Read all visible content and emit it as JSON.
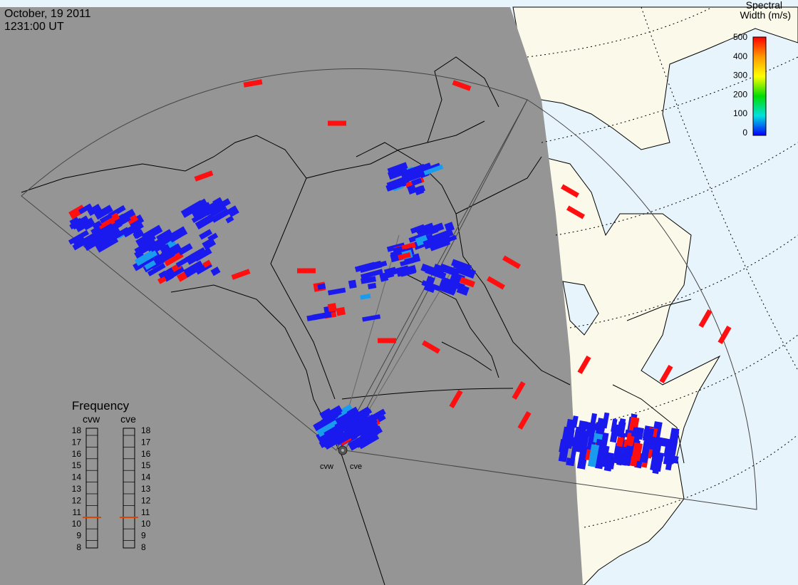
{
  "header": {
    "date": "October, 19 2011",
    "time": "1231:00 UT"
  },
  "colorbar": {
    "title_line1": "Spectral",
    "title_line2": "Width (m/s)",
    "ticks": [
      "500",
      "400",
      "300",
      "200",
      "100",
      "0"
    ],
    "stops": [
      "#ff0000",
      "#ff9900",
      "#ffff00",
      "#00dd00",
      "#00e0e0",
      "#0000ff"
    ]
  },
  "frequency_panel": {
    "title": "Frequency",
    "radars": [
      {
        "label": "cvw",
        "value_mhz": 10.8
      },
      {
        "label": "cve",
        "value_mhz": 10.8
      }
    ],
    "scale": [
      "18",
      "17",
      "16",
      "15",
      "14",
      "13",
      "12",
      "11",
      "10",
      "9",
      "8"
    ],
    "marker_color": "#dd4400"
  },
  "radar_labels": [
    "cvw",
    "cve"
  ],
  "colors": {
    "night": "#959595",
    "day_land": "#fbf9ea",
    "day_ocean": "#e8f4fb",
    "low_width": "#1a1aee",
    "high_width": "#ff0f0f"
  }
}
